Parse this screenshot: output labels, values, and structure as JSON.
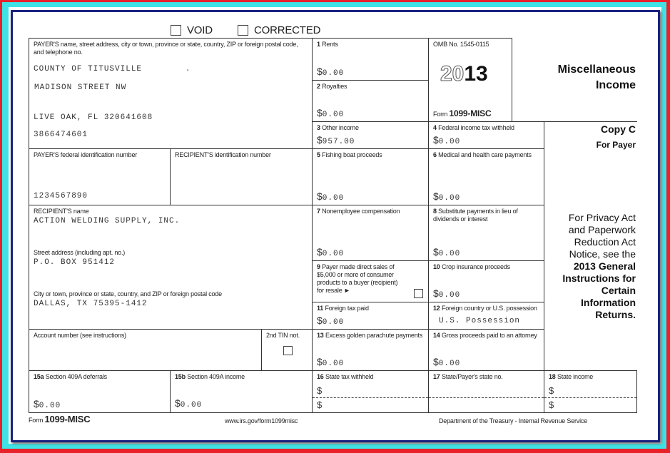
{
  "header": {
    "void_label": "VOID",
    "corrected_label": "CORRECTED"
  },
  "payer": {
    "label": "PAYER'S name, street address, city or town, province or state, country, ZIP or foreign postal code, and telephone no.",
    "name": "COUNTY OF TITUSVILLE        .",
    "street": "MADISON STREET NW",
    "city": "LIVE OAK, FL 320641608",
    "phone": "3866474601"
  },
  "payer_id": {
    "label": "PAYER'S federal identification number",
    "value": "1234567890"
  },
  "recipient_id": {
    "label": "RECIPIENT'S identification number",
    "value": ""
  },
  "recipient": {
    "name_label": "RECIPIENT'S name",
    "name": "ACTION WELDING SUPPLY, INC.",
    "street_label": "Street address (including apt. no.)",
    "street": "P.O. BOX 951412",
    "city_label": "City or town, province or state, country, and ZIP or foreign postal code",
    "city": "DALLAS, TX 75395-1412"
  },
  "account": {
    "label": "Account number (see instructions)",
    "tin_label": "2nd TIN not."
  },
  "boxes": {
    "b1": {
      "num": "1",
      "label": "Rents",
      "value": "0.00"
    },
    "b2": {
      "num": "2",
      "label": "Royalties",
      "value": "0.00"
    },
    "b3": {
      "num": "3",
      "label": "Other income",
      "value": "957.00"
    },
    "b4": {
      "num": "4",
      "label": "Federal income tax withheld",
      "value": "0.00"
    },
    "b5": {
      "num": "5",
      "label": "Fishing boat proceeds",
      "value": "0.00"
    },
    "b6": {
      "num": "6",
      "label": "Medical and health care payments",
      "value": "0.00"
    },
    "b7": {
      "num": "7",
      "label": "Nonemployee compensation",
      "value": "0.00"
    },
    "b8": {
      "num": "8",
      "label": "Substitute payments in lieu of dividends or interest",
      "value": "0.00"
    },
    "b9": {
      "num": "9",
      "label": "Payer made direct sales of $5,000 or more of consumer products to a buyer (recipient) for resale ►"
    },
    "b10": {
      "num": "10",
      "label": "Crop insurance proceeds",
      "value": "0.00"
    },
    "b11": {
      "num": "11",
      "label": "Foreign tax paid",
      "value": "0.00"
    },
    "b12": {
      "num": "12",
      "label": "Foreign country or U.S. possession",
      "value": "U.S. Possession"
    },
    "b13": {
      "num": "13",
      "label": "Excess golden parachute payments",
      "value": "0.00"
    },
    "b14": {
      "num": "14",
      "label": "Gross proceeds paid to an attorney",
      "value": "0.00"
    },
    "b15a": {
      "num": "15a",
      "label": "Section 409A deferrals",
      "value": "0.00"
    },
    "b15b": {
      "num": "15b",
      "label": "Section 409A income",
      "value": "0.00"
    },
    "b16": {
      "num": "16",
      "label": "State tax withheld"
    },
    "b17": {
      "num": "17",
      "label": "State/Payer's state no."
    },
    "b18": {
      "num": "18",
      "label": "State income"
    }
  },
  "currency_symbol": "$",
  "omb": {
    "number": "OMB No. 1545-0115",
    "year_outline": "20",
    "year_bold": "13",
    "form_prefix": "Form",
    "form_name": "1099-MISC"
  },
  "title": {
    "line1": "Miscellaneous",
    "line2": "Income"
  },
  "copy": {
    "line1": "Copy C",
    "line2": "For Payer"
  },
  "privacy": {
    "lines": [
      "For Privacy Act",
      "and Paperwork",
      "Reduction Act",
      "Notice, see the"
    ],
    "bold_lines": [
      "2013 General",
      "Instructions for",
      "Certain",
      "Information",
      "Returns."
    ]
  },
  "footer": {
    "form_prefix": "Form",
    "form_name": "1099-MISC",
    "url": "www.irs.gov/form1099misc",
    "department": "Department of the Treasury - Internal Revenue Service"
  }
}
